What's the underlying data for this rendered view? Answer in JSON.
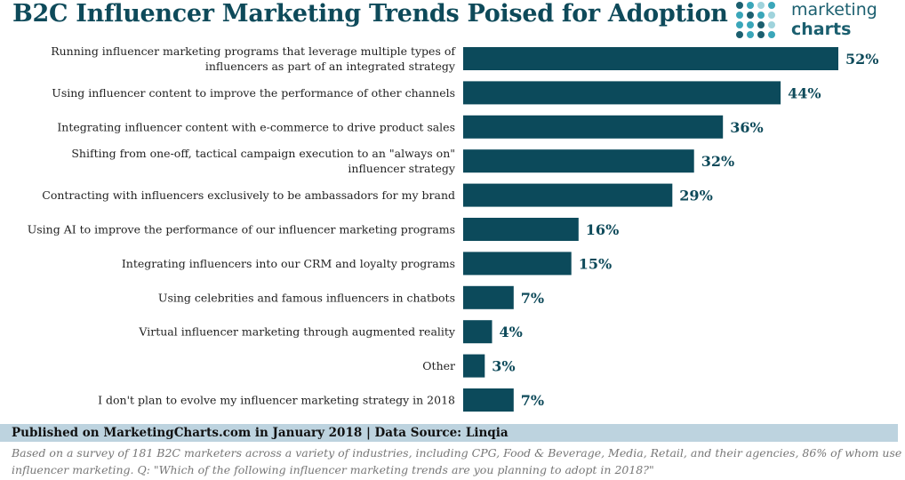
{
  "chart_data": {
    "type": "bar",
    "orientation": "horizontal",
    "title": "B2C Influencer Marketing Trends Poised for Adoption",
    "categories": [
      [
        "Running influencer marketing programs that leverage multiple types of",
        "influencers as part of an integrated strategy"
      ],
      [
        "Using influencer content to improve the performance of other channels"
      ],
      [
        "Integrating influencer content with e-commerce to drive product sales"
      ],
      [
        "Shifting from one-off, tactical campaign execution to an \"always on\"",
        "influencer strategy"
      ],
      [
        "Contracting with influencers exclusively to be ambassadors for my brand"
      ],
      [
        "Using AI to improve the performance of our influencer marketing programs"
      ],
      [
        "Integrating influencers into our CRM and loyalty programs"
      ],
      [
        "Using celebrities and famous influencers in chatbots"
      ],
      [
        "Virtual influencer marketing through augmented reality"
      ],
      [
        "Other"
      ],
      [
        "I don't plan to evolve my influencer marketing strategy in 2018"
      ]
    ],
    "values": [
      52,
      44,
      36,
      32,
      29,
      16,
      15,
      7,
      4,
      3,
      7
    ],
    "value_suffix": "%",
    "xlim": [
      0,
      52
    ],
    "grid": false,
    "legend": "none",
    "bar_color": "#0c4a5b",
    "label_color": "#0e4a5a"
  },
  "logo": {
    "line1": "marketing",
    "line2": "charts",
    "dot_colors": [
      "#1b5f6f",
      "#3aa6b9",
      "#9fd3dc"
    ]
  },
  "footer": {
    "published": "Published on MarketingCharts.com in January 2018 | Data Source: Linqia",
    "note_line1": "Based on a survey of 181 B2C marketers across a variety of industries, including CPG, Food & Beverage, Media, Retail, and their agencies, 86% of whom use",
    "note_line2": "influencer marketing. Q: \"Which of the following influencer marketing trends are you planning to adopt in 2018?\""
  }
}
